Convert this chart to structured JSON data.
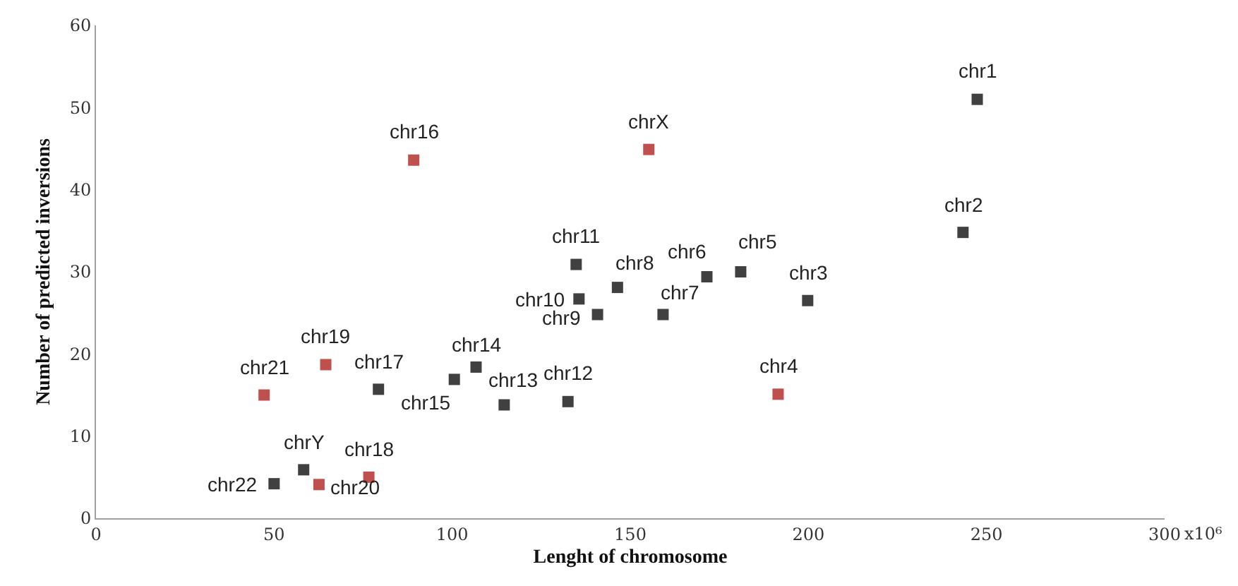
{
  "chart_data": {
    "type": "scatter",
    "xlabel": "Lenght of chromosome",
    "ylabel": "Number of predicted inversions",
    "x": [
      247.4,
      243.4,
      155.2,
      89.2,
      134.8,
      146.4,
      171.5,
      181.0,
      199.8,
      135.6,
      140.8,
      159.2,
      191.5,
      106.7,
      114.6,
      100.6,
      132.5,
      79.3,
      64.5,
      47.2,
      58.3,
      50.0,
      62.6,
      76.6
    ],
    "values": [
      51.0,
      34.8,
      44.9,
      43.6,
      30.9,
      28.1,
      29.4,
      30.0,
      26.5,
      26.7,
      24.8,
      24.8,
      15.1,
      18.4,
      13.8,
      16.9,
      14.2,
      15.7,
      18.7,
      15.0,
      5.9,
      4.2,
      4.1,
      5.0
    ],
    "colors": [
      "#404040",
      "#404040",
      "#c0504d",
      "#c0504d",
      "#404040",
      "#404040",
      "#404040",
      "#404040",
      "#404040",
      "#404040",
      "#404040",
      "#404040",
      "#c0504d",
      "#404040",
      "#404040",
      "#404040",
      "#404040",
      "#404040",
      "#c0504d",
      "#c0504d",
      "#404040",
      "#404040",
      "#c0504d",
      "#c0504d"
    ],
    "marker": "square",
    "grid": false,
    "xlim": [
      0,
      300
    ],
    "xticks": [
      0,
      50,
      100,
      150,
      200,
      250,
      300
    ],
    "ylim": [
      0,
      60
    ],
    "yticks": [
      0,
      10,
      20,
      30,
      40,
      50,
      60
    ],
    "annotations": [
      "x10⁶",
      {
        "text": "chr1",
        "x": 247.4,
        "y": 51.0
      },
      {
        "text": "chr2",
        "x": 243.4,
        "y": 34.8
      },
      {
        "text": "chrX",
        "x": 155.2,
        "y": 44.9
      },
      {
        "text": "chr16",
        "x": 89.2,
        "y": 43.6
      },
      {
        "text": "chr11",
        "x": 134.8,
        "y": 30.9
      },
      {
        "text": "chr8",
        "x": 146.4,
        "y": 28.1
      },
      {
        "text": "chr6",
        "x": 171.5,
        "y": 29.4
      },
      {
        "text": "chr5",
        "x": 181.0,
        "y": 30.0
      },
      {
        "text": "chr3",
        "x": 199.8,
        "y": 26.5
      },
      {
        "text": "chr10",
        "x": 135.6,
        "y": 26.7
      },
      {
        "text": "chr9",
        "x": 140.8,
        "y": 24.8
      },
      {
        "text": "chr7",
        "x": 159.2,
        "y": 24.8
      },
      {
        "text": "chr4",
        "x": 191.5,
        "y": 15.1
      },
      {
        "text": "chr14",
        "x": 106.7,
        "y": 18.4
      },
      {
        "text": "chr13",
        "x": 114.6,
        "y": 13.8
      },
      {
        "text": "chr15",
        "x": 100.6,
        "y": 16.9
      },
      {
        "text": "chr12",
        "x": 132.5,
        "y": 14.2
      },
      {
        "text": "chr17",
        "x": 79.3,
        "y": 15.7
      },
      {
        "text": "chr19",
        "x": 64.5,
        "y": 18.7
      },
      {
        "text": "chr21",
        "x": 47.2,
        "y": 15.0
      },
      {
        "text": "chrY",
        "x": 58.3,
        "y": 5.9
      },
      {
        "text": "chr22",
        "x": 50.0,
        "y": 4.2
      },
      {
        "text": "chr20",
        "x": 62.6,
        "y": 4.1
      },
      {
        "text": "chr18",
        "x": 76.6,
        "y": 5.0
      }
    ]
  }
}
